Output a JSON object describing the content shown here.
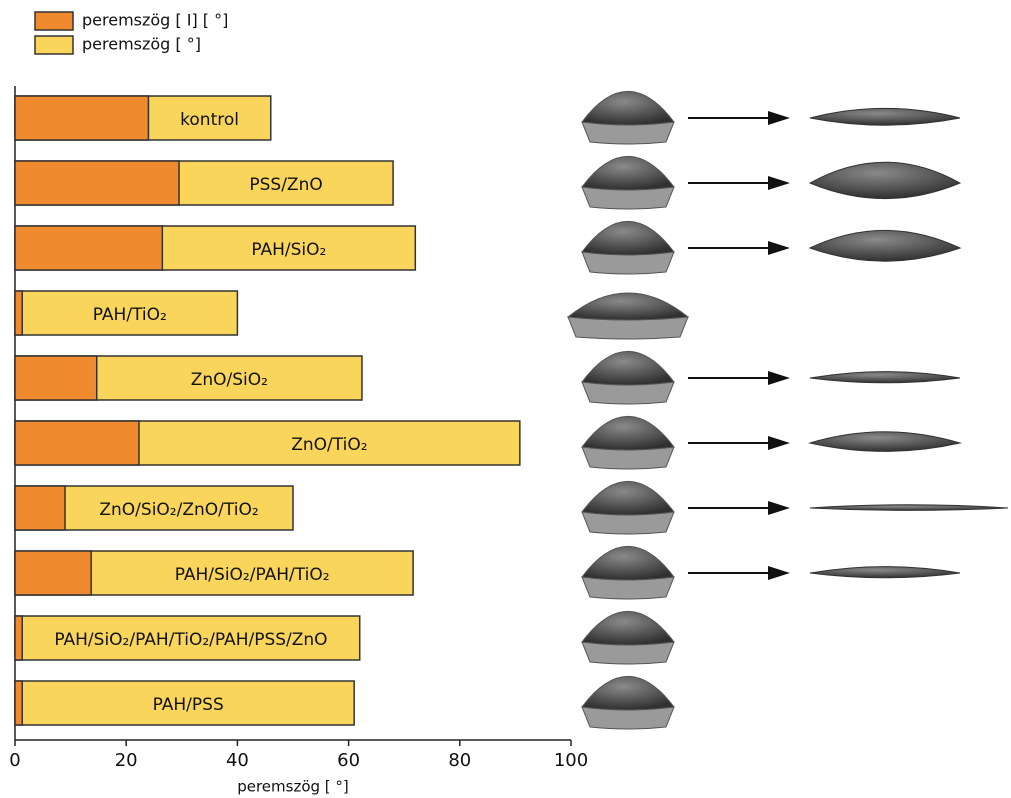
{
  "chart_data": {
    "type": "bar",
    "orientation": "horizontal",
    "overlay": true,
    "categories": [
      "kontrol",
      "PSS/ZnO",
      "PAH/SiO₂",
      "PAH/TiO₂",
      "ZnO/SiO₂",
      "ZnO/TiO₂",
      "ZnO/SiO₂/ZnO/TiO₂",
      "PAH/SiO₂/PAH/TiO₂",
      "PAH/SiO₂/PAH/TiO₂/PAH/PSS/ZnO",
      "PAH/PSS"
    ],
    "series": [
      {
        "name": "peremszög [ I] [ °]",
        "color": "#f08a2e",
        "values": [
          24,
          29.5,
          26.5,
          1.3,
          14.7,
          22.3,
          9,
          13.7,
          1.3,
          1.3
        ]
      },
      {
        "name": "peremszög [ °]",
        "color": "#f9d55b",
        "values": [
          46,
          68,
          72,
          40,
          62.4,
          90.8,
          50,
          71.6,
          62,
          61
        ]
      }
    ],
    "x_label": "peremszög [ °]",
    "xlim": [
      0,
      100
    ],
    "xticks": [
      0,
      20,
      40,
      60,
      80,
      100
    ],
    "legend": "top-left"
  }
}
